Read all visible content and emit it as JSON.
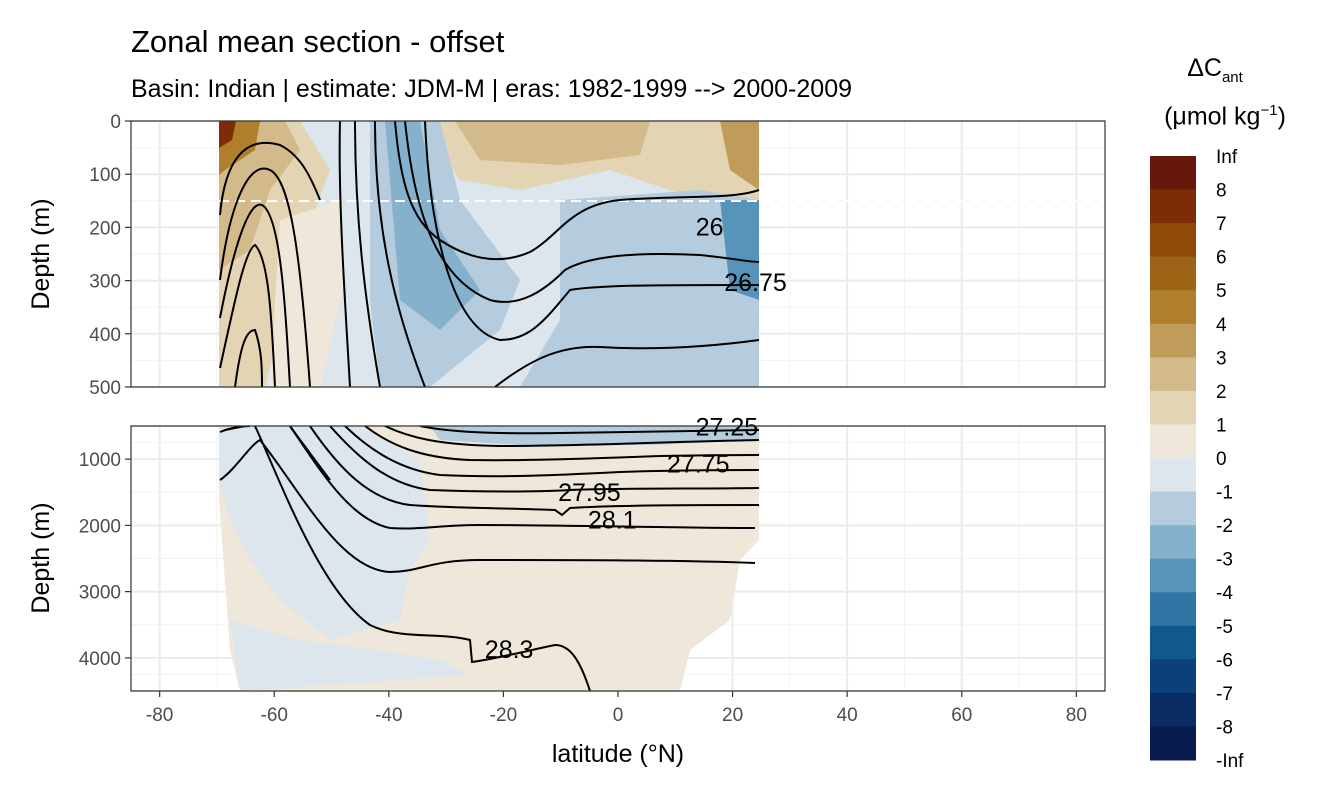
{
  "chart_data": {
    "type": "heatmap",
    "title": "Zonal mean section - offset",
    "subtitle": "Basin: Indian | estimate: JDM-M | eras: 1982-1999 --> 2000-2009",
    "xlabel": "latitude (°N)",
    "ylabel": "Depth (m)",
    "legend": {
      "title_main": "ΔC",
      "title_sub": "ant",
      "title_unit_prefix": "(μmol kg",
      "title_unit_sup": "−1",
      "title_unit_suffix": ")",
      "placement": "right",
      "labels": [
        "Inf",
        "8",
        "7",
        "6",
        "5",
        "4",
        "3",
        "2",
        "1",
        "0",
        "-1",
        "-2",
        "-3",
        "-4",
        "-5",
        "-6",
        "-7",
        "-8",
        "-Inf"
      ],
      "colors": [
        "#67180a",
        "#7c2d06",
        "#8f4a0a",
        "#9c6414",
        "#b07f2e",
        "#c09c5a",
        "#d3ba8b",
        "#e3d4b4",
        "#eee7da",
        "#dce6ec",
        "#b4ccde",
        "#85b1cd",
        "#5694ba",
        "#2f76a5",
        "#10598f",
        "#0b4178",
        "#082c63",
        "#071b4e"
      ]
    },
    "xlim": [
      -85,
      85
    ],
    "x_ticks": [
      -80,
      -60,
      -40,
      -20,
      0,
      20,
      40,
      60,
      80
    ],
    "data_lat_range": [
      -69.5,
      24.5
    ],
    "panels": [
      {
        "name": "upper",
        "ylim": [
          0,
          500
        ],
        "y_ticks": [
          0,
          100,
          200,
          300,
          400,
          500
        ],
        "dashed_line_depth": 150,
        "isopycnal_labels": [
          {
            "label": "26",
            "lat": 16,
            "depth": 215
          },
          {
            "label": "26.75",
            "lat": 24,
            "depth": 320
          }
        ]
      },
      {
        "name": "lower",
        "ylim": [
          500,
          4500
        ],
        "y_ticks": [
          1000,
          2000,
          3000,
          4000
        ],
        "isopycnal_labels": [
          {
            "label": "27.25",
            "lat": 19,
            "depth": 640
          },
          {
            "label": "27.75",
            "lat": 14,
            "depth": 1200
          },
          {
            "label": "27.95",
            "lat": -5,
            "depth": 1630
          },
          {
            "label": "28.1",
            "lat": -1,
            "depth": 2050
          },
          {
            "label": "28.3",
            "lat": -19,
            "depth": 4000
          }
        ]
      }
    ]
  }
}
